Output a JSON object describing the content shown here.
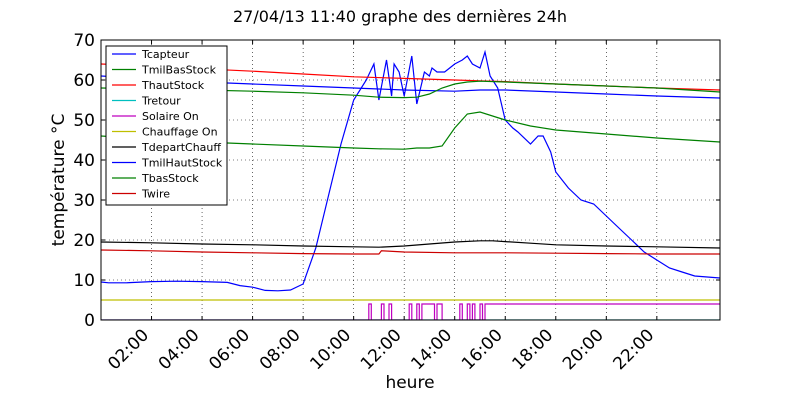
{
  "chart_data": {
    "type": "line",
    "title": "27/04/13 11:40  graphe des dernières 24h",
    "xlabel": "heure",
    "ylabel": "température °C",
    "xlim": [
      0.0,
      24.5
    ],
    "ylim": [
      0,
      70
    ],
    "yticks": [
      0,
      10,
      20,
      30,
      40,
      50,
      60,
      70
    ],
    "xticks": [
      {
        "x": 2,
        "label": "02:00"
      },
      {
        "x": 4,
        "label": "04:00"
      },
      {
        "x": 6,
        "label": "06:00"
      },
      {
        "x": 8,
        "label": "08:00"
      },
      {
        "x": 10,
        "label": "10:00"
      },
      {
        "x": 12,
        "label": "12:00"
      },
      {
        "x": 14,
        "label": "14:00"
      },
      {
        "x": 16,
        "label": "16:00"
      },
      {
        "x": 18,
        "label": "18:00"
      },
      {
        "x": 20,
        "label": "20:00"
      },
      {
        "x": 22,
        "label": "22:00"
      }
    ],
    "grid": true,
    "legend_position": "top-left",
    "series": [
      {
        "name": "Tcapteur",
        "color": "#0000ff",
        "x": [
          0,
          0.3,
          1,
          2,
          3,
          4,
          5,
          5.5,
          6,
          6.5,
          7,
          7.5,
          8,
          8.5,
          9,
          9.5,
          10,
          10.5,
          10.8,
          11,
          11.3,
          11.5,
          11.6,
          11.8,
          12,
          12.3,
          12.5,
          12.8,
          13,
          13.1,
          13.3,
          13.6,
          13.8,
          14,
          14.3,
          14.5,
          14.7,
          15,
          15.2,
          15.4,
          15.7,
          16,
          16.3,
          16.5,
          17,
          17.3,
          17.5,
          17.8,
          18,
          18.5,
          19,
          19.5,
          20,
          20.5,
          21,
          21.5,
          22,
          22.5,
          23,
          23.5,
          24.5
        ],
        "y": [
          9.5,
          9.3,
          9.3,
          9.6,
          9.7,
          9.6,
          9.4,
          8.6,
          8.2,
          7.4,
          7.3,
          7.5,
          9,
          18,
          31,
          44,
          55,
          60,
          64,
          55,
          65,
          56,
          64,
          62,
          56,
          66,
          54,
          62,
          61,
          63,
          62,
          62,
          63,
          64,
          65,
          66,
          64,
          63,
          67,
          61,
          58,
          50,
          48,
          47,
          44,
          46,
          46,
          42,
          37,
          33,
          30,
          29,
          26,
          23,
          20,
          17,
          15,
          13,
          12,
          11,
          10.5
        ]
      },
      {
        "name": "TmilBasStock",
        "color": "#008000",
        "x": [
          0,
          2,
          4,
          6,
          8,
          10,
          11,
          12,
          12.5,
          13,
          13.5,
          14,
          14.5,
          15,
          16,
          17,
          18,
          20,
          22,
          24.5
        ],
        "y": [
          46,
          45.2,
          44.5,
          44,
          43.5,
          43,
          42.8,
          42.7,
          43,
          43,
          43.5,
          48,
          51.5,
          52,
          50,
          48.5,
          47.5,
          46.5,
          45.5,
          44.5
        ]
      },
      {
        "name": "ThautStock",
        "color": "#ff0000",
        "x": [
          0,
          2,
          4,
          6,
          8,
          10,
          12,
          14,
          15,
          16,
          18,
          20,
          22,
          24.5
        ],
        "y": [
          64,
          63.5,
          62.8,
          62.2,
          61.5,
          60.8,
          60.4,
          60,
          59.8,
          59.6,
          59,
          58.5,
          58,
          57.5
        ]
      },
      {
        "name": "Tretour",
        "color": "#00bfbf",
        "x": [
          0,
          24.5
        ],
        "y": [
          0,
          0
        ]
      },
      {
        "name": "Solaire On",
        "color": "#bf00bf",
        "x": [
          0,
          10.6,
          10.6,
          10.7,
          10.7,
          11.1,
          11.1,
          11.2,
          11.2,
          11.4,
          11.4,
          11.5,
          11.5,
          12.2,
          12.2,
          12.3,
          12.3,
          12.5,
          12.5,
          12.6,
          12.6,
          12.7,
          12.7,
          13.2,
          13.2,
          13.3,
          13.3,
          13.5,
          13.5,
          14.2,
          14.2,
          14.3,
          14.3,
          14.5,
          14.5,
          14.6,
          14.6,
          14.7,
          14.7,
          14.8,
          14.8,
          15.0,
          15.0,
          15.1,
          15.1,
          15.2,
          15.2,
          24.5
        ],
        "y": [
          0,
          0,
          4,
          4,
          0,
          0,
          4,
          4,
          0,
          0,
          4,
          4,
          0,
          0,
          4,
          4,
          0,
          0,
          4,
          4,
          0,
          0,
          4,
          4,
          0,
          0,
          4,
          4,
          0,
          0,
          4,
          4,
          0,
          0,
          4,
          4,
          0,
          0,
          4,
          4,
          0,
          0,
          4,
          4,
          0,
          0,
          4,
          4
        ]
      },
      {
        "name": "Chauffage On",
        "color": "#bfbf00",
        "x": [
          0,
          24.5
        ],
        "y": [
          5,
          5
        ]
      },
      {
        "name": "TdepartChauff",
        "color": "#000000",
        "x": [
          0,
          2,
          4,
          6,
          8,
          10,
          11,
          12,
          13,
          14,
          15,
          15.5,
          16,
          17,
          18,
          20,
          22,
          24.5
        ],
        "y": [
          19.5,
          19.3,
          19,
          18.8,
          18.5,
          18.3,
          18.2,
          18.5,
          19,
          19.5,
          19.8,
          19.8,
          19.6,
          19.2,
          18.8,
          18.5,
          18.3,
          18
        ]
      },
      {
        "name": "TmilHautStock",
        "color": "#0000ff",
        "x": [
          0,
          2,
          4,
          6,
          8,
          10,
          12,
          14,
          15,
          16,
          18,
          20,
          22,
          24.5
        ],
        "y": [
          61,
          60.3,
          59.5,
          59,
          58.5,
          58,
          57.5,
          57.2,
          57.5,
          57.5,
          57,
          56.5,
          56,
          55.5
        ]
      },
      {
        "name": "TbasStock",
        "color": "#008000",
        "x": [
          0,
          2,
          4,
          6,
          8,
          10,
          11,
          12,
          12.5,
          13,
          13.5,
          14,
          14.5,
          15,
          16,
          18,
          20,
          22,
          24.5
        ],
        "y": [
          58,
          57.8,
          57.5,
          57.2,
          56.8,
          56.2,
          55.7,
          55.6,
          55.7,
          56.5,
          58,
          59,
          59.5,
          59.7,
          59.5,
          59,
          58.5,
          58,
          57
        ]
      },
      {
        "name": "Twire",
        "color": "#cc0000",
        "x": [
          0,
          2,
          4,
          6,
          8,
          10,
          11,
          11.1,
          12,
          14,
          16,
          18,
          20,
          22,
          24.5
        ],
        "y": [
          17.5,
          17.3,
          17,
          16.8,
          16.6,
          16.5,
          16.5,
          17.3,
          17,
          16.8,
          16.8,
          16.7,
          16.6,
          16.5,
          16.5
        ]
      }
    ]
  }
}
